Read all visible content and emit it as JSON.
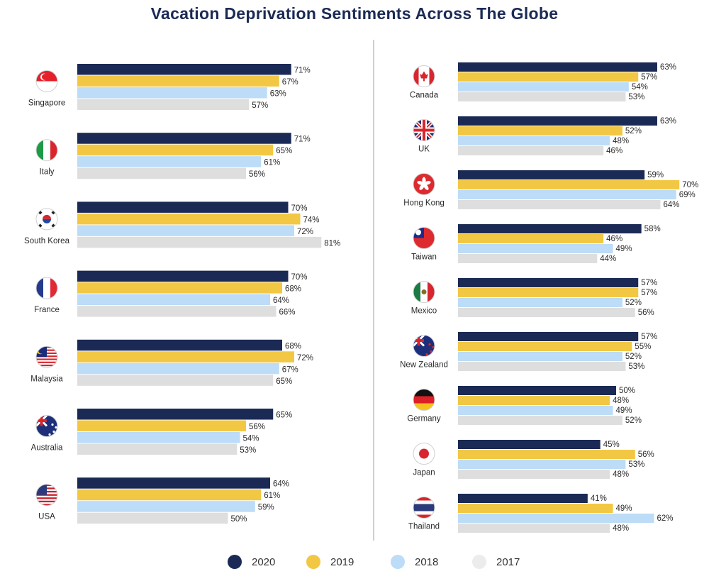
{
  "colors": {
    "2020": "#1b2a55",
    "2019": "#f2c744",
    "2018": "#bcdcf7",
    "2017": "#dedede",
    "title": "#1b2a55"
  },
  "chart_data": {
    "type": "bar",
    "orientation": "horizontal",
    "title": "Vacation Deprivation Sentiments Across The Globe",
    "value_format": "percent",
    "legend": [
      "2020",
      "2019",
      "2018",
      "2017"
    ],
    "legend_position": "bottom",
    "panels": [
      {
        "countries": [
          {
            "name": "Singapore",
            "flag": "singapore-flag-icon",
            "values": [
              71,
              67,
              63,
              57
            ]
          },
          {
            "name": "Italy",
            "flag": "italy-flag-icon",
            "values": [
              71,
              65,
              61,
              56
            ]
          },
          {
            "name": "South Korea",
            "flag": "south-korea-flag-icon",
            "values": [
              70,
              74,
              72,
              81
            ]
          },
          {
            "name": "France",
            "flag": "france-flag-icon",
            "values": [
              70,
              68,
              64,
              66
            ]
          },
          {
            "name": "Malaysia",
            "flag": "malaysia-flag-icon",
            "values": [
              68,
              72,
              67,
              65
            ]
          },
          {
            "name": "Australia",
            "flag": "australia-flag-icon",
            "values": [
              65,
              56,
              54,
              53
            ]
          },
          {
            "name": "USA",
            "flag": "usa-flag-icon",
            "values": [
              64,
              61,
              59,
              50
            ]
          }
        ]
      },
      {
        "countries": [
          {
            "name": "Canada",
            "flag": "canada-flag-icon",
            "values": [
              63,
              57,
              54,
              53
            ]
          },
          {
            "name": "UK",
            "flag": "uk-flag-icon",
            "values": [
              63,
              52,
              48,
              46
            ]
          },
          {
            "name": "Hong Kong",
            "flag": "hong-kong-flag-icon",
            "values": [
              59,
              70,
              69,
              64
            ]
          },
          {
            "name": "Taiwan",
            "flag": "taiwan-flag-icon",
            "values": [
              58,
              46,
              49,
              44
            ]
          },
          {
            "name": "Mexico",
            "flag": "mexico-flag-icon",
            "values": [
              57,
              57,
              52,
              56
            ]
          },
          {
            "name": "New Zealand",
            "flag": "new-zealand-flag-icon",
            "values": [
              57,
              55,
              52,
              53
            ]
          },
          {
            "name": "Germany",
            "flag": "germany-flag-icon",
            "values": [
              50,
              48,
              49,
              52
            ]
          },
          {
            "name": "Japan",
            "flag": "japan-flag-icon",
            "values": [
              45,
              56,
              53,
              48
            ]
          },
          {
            "name": "Thailand",
            "flag": "thailand-flag-icon",
            "values": [
              41,
              49,
              62,
              48
            ]
          }
        ]
      }
    ]
  }
}
